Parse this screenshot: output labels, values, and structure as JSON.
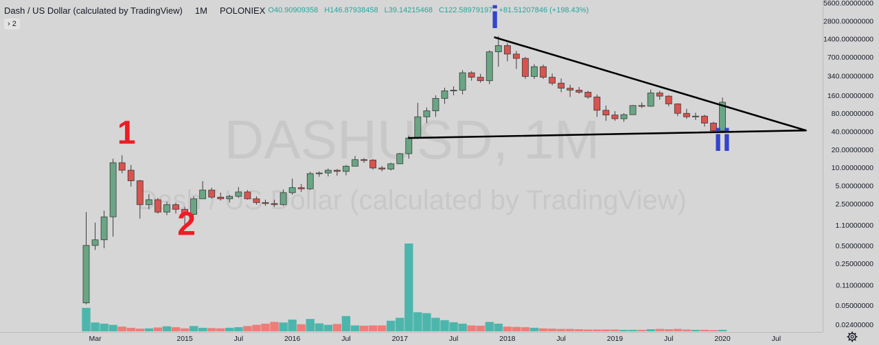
{
  "legend": {
    "symbol_title": "Dash / US Dollar (calculated by TradingView)",
    "interval": "1M",
    "exchange": "POLONIEX",
    "open": "O40.90909358",
    "high": "H146.87938458",
    "low": "L39.14215468",
    "close": "C122.58979197",
    "change": "+81.51207846 (+198.43%)",
    "collapsed_count": "2"
  },
  "colors": {
    "background": "#d6d6d6",
    "up": "#6aa584",
    "down": "#d9534f",
    "volume_up": "#4db6ac",
    "volume_down": "#ef7c78",
    "trendline": "#000000",
    "label_red": "#ee1c24",
    "label_blue": "#3344cc"
  },
  "watermark": {
    "symbol": "DASHUSD, 1M",
    "description": "Dash / US Dollar (calculated by TradingView)"
  },
  "annotations": {
    "label_1": "1",
    "label_2": "2",
    "label_i": "i",
    "label_ii": "ii"
  },
  "chart_data": {
    "type": "candlestick",
    "scale": "log",
    "interval": "1M",
    "ylim": [
      0.018,
      5600
    ],
    "y_ticks": [
      {
        "value": 5600,
        "label": "5600.00000000"
      },
      {
        "value": 2800,
        "label": "2800.00000000"
      },
      {
        "value": 1400,
        "label": "1400.00000000"
      },
      {
        "value": 700,
        "label": "700.00000000"
      },
      {
        "value": 340,
        "label": "340.00000000"
      },
      {
        "value": 160,
        "label": "160.00000000"
      },
      {
        "value": 80,
        "label": "80.00000000"
      },
      {
        "value": 40,
        "label": "40.00000000"
      },
      {
        "value": 20,
        "label": "20.00000000"
      },
      {
        "value": 10,
        "label": "10.00000000"
      },
      {
        "value": 5,
        "label": "5.00000000"
      },
      {
        "value": 2.5,
        "label": "2.50000000"
      },
      {
        "value": 1.1,
        "label": "1.10000000"
      },
      {
        "value": 0.5,
        "label": "0.50000000"
      },
      {
        "value": 0.25,
        "label": "0.25000000"
      },
      {
        "value": 0.11,
        "label": "0.11000000"
      },
      {
        "value": 0.05,
        "label": "0.05000000"
      },
      {
        "value": 0.024,
        "label": "0.02400000"
      }
    ],
    "x_ticks": [
      {
        "index": 1,
        "label": "Mar"
      },
      {
        "index": 11,
        "label": "2015"
      },
      {
        "index": 17,
        "label": "Jul"
      },
      {
        "index": 23,
        "label": "2016"
      },
      {
        "index": 29,
        "label": "Jul"
      },
      {
        "index": 35,
        "label": "2017"
      },
      {
        "index": 41,
        "label": "Jul"
      },
      {
        "index": 47,
        "label": "2018"
      },
      {
        "index": 53,
        "label": "Jul"
      },
      {
        "index": 59,
        "label": "2019"
      },
      {
        "index": 65,
        "label": "Jul"
      },
      {
        "index": 71,
        "label": "2020"
      },
      {
        "index": 77,
        "label": "Jul"
      }
    ],
    "candles": [
      {
        "o": 0.055,
        "h": 1.8,
        "l": 0.052,
        "c": 0.5
      },
      {
        "o": 0.5,
        "h": 1.2,
        "l": 0.42,
        "c": 0.62
      },
      {
        "o": 0.62,
        "h": 1.9,
        "l": 0.45,
        "c": 1.5
      },
      {
        "o": 1.5,
        "h": 14,
        "l": 0.7,
        "c": 12
      },
      {
        "o": 12,
        "h": 16,
        "l": 8,
        "c": 9
      },
      {
        "o": 9,
        "h": 11,
        "l": 4.8,
        "c": 6
      },
      {
        "o": 6,
        "h": 6.2,
        "l": 1.4,
        "c": 2.4
      },
      {
        "o": 2.4,
        "h": 3.6,
        "l": 2.0,
        "c": 2.9
      },
      {
        "o": 2.9,
        "h": 3.1,
        "l": 1.7,
        "c": 1.8
      },
      {
        "o": 1.8,
        "h": 2.7,
        "l": 1.6,
        "c": 2.4
      },
      {
        "o": 2.4,
        "h": 2.6,
        "l": 1.7,
        "c": 2.0
      },
      {
        "o": 2.0,
        "h": 2.2,
        "l": 1.1,
        "c": 1.65
      },
      {
        "o": 1.65,
        "h": 3.3,
        "l": 1.6,
        "c": 3.0
      },
      {
        "o": 3.0,
        "h": 5.9,
        "l": 3.0,
        "c": 4.2
      },
      {
        "o": 4.2,
        "h": 4.6,
        "l": 3.0,
        "c": 3.2
      },
      {
        "o": 3.2,
        "h": 3.8,
        "l": 2.8,
        "c": 3.0
      },
      {
        "o": 3.0,
        "h": 3.5,
        "l": 2.6,
        "c": 3.3
      },
      {
        "o": 3.3,
        "h": 4.7,
        "l": 3.1,
        "c": 3.9
      },
      {
        "o": 3.9,
        "h": 4.2,
        "l": 2.9,
        "c": 3.0
      },
      {
        "o": 3.0,
        "h": 3.3,
        "l": 2.4,
        "c": 2.6
      },
      {
        "o": 2.6,
        "h": 2.9,
        "l": 2.3,
        "c": 2.5
      },
      {
        "o": 2.5,
        "h": 2.9,
        "l": 2.2,
        "c": 2.4
      },
      {
        "o": 2.4,
        "h": 4.3,
        "l": 2.3,
        "c": 3.8
      },
      {
        "o": 3.8,
        "h": 6.5,
        "l": 3.5,
        "c": 4.6
      },
      {
        "o": 4.6,
        "h": 5.3,
        "l": 3.9,
        "c": 4.4
      },
      {
        "o": 4.4,
        "h": 8.5,
        "l": 4.2,
        "c": 7.9
      },
      {
        "o": 7.9,
        "h": 8.6,
        "l": 7.0,
        "c": 8.1
      },
      {
        "o": 8.1,
        "h": 9.6,
        "l": 7.1,
        "c": 9.0
      },
      {
        "o": 9.0,
        "h": 9.4,
        "l": 7.3,
        "c": 8.6
      },
      {
        "o": 8.6,
        "h": 11,
        "l": 7.4,
        "c": 10.5
      },
      {
        "o": 10.5,
        "h": 15.5,
        "l": 10.5,
        "c": 13.5
      },
      {
        "o": 13.5,
        "h": 14.3,
        "l": 12.0,
        "c": 13.3
      },
      {
        "o": 13.3,
        "h": 13.8,
        "l": 9.2,
        "c": 9.8
      },
      {
        "o": 9.8,
        "h": 10.6,
        "l": 8.6,
        "c": 9.4
      },
      {
        "o": 9.4,
        "h": 12,
        "l": 8.9,
        "c": 11.5
      },
      {
        "o": 11.5,
        "h": 17.5,
        "l": 11.5,
        "c": 17.0
      },
      {
        "o": 17.0,
        "h": 34,
        "l": 14,
        "c": 31
      },
      {
        "o": 31,
        "h": 120,
        "l": 30,
        "c": 70
      },
      {
        "o": 70,
        "h": 100,
        "l": 55,
        "c": 88
      },
      {
        "o": 88,
        "h": 160,
        "l": 70,
        "c": 142
      },
      {
        "o": 142,
        "h": 215,
        "l": 115,
        "c": 190
      },
      {
        "o": 190,
        "h": 225,
        "l": 160,
        "c": 195
      },
      {
        "o": 195,
        "h": 420,
        "l": 165,
        "c": 380
      },
      {
        "o": 380,
        "h": 405,
        "l": 280,
        "c": 320
      },
      {
        "o": 320,
        "h": 365,
        "l": 260,
        "c": 280
      },
      {
        "o": 280,
        "h": 900,
        "l": 245,
        "c": 850
      },
      {
        "o": 850,
        "h": 1550,
        "l": 480,
        "c": 1080
      },
      {
        "o": 1080,
        "h": 1190,
        "l": 590,
        "c": 780
      },
      {
        "o": 780,
        "h": 880,
        "l": 440,
        "c": 660
      },
      {
        "o": 660,
        "h": 700,
        "l": 300,
        "c": 330
      },
      {
        "o": 330,
        "h": 530,
        "l": 300,
        "c": 480
      },
      {
        "o": 480,
        "h": 520,
        "l": 300,
        "c": 320
      },
      {
        "o": 320,
        "h": 370,
        "l": 235,
        "c": 255
      },
      {
        "o": 255,
        "h": 305,
        "l": 180,
        "c": 210
      },
      {
        "o": 210,
        "h": 240,
        "l": 150,
        "c": 195
      },
      {
        "o": 195,
        "h": 220,
        "l": 170,
        "c": 180
      },
      {
        "o": 180,
        "h": 190,
        "l": 140,
        "c": 150
      },
      {
        "o": 150,
        "h": 165,
        "l": 70,
        "c": 90
      },
      {
        "o": 90,
        "h": 108,
        "l": 60,
        "c": 75
      },
      {
        "o": 75,
        "h": 87,
        "l": 60,
        "c": 65
      },
      {
        "o": 65,
        "h": 80,
        "l": 58,
        "c": 76
      },
      {
        "o": 76,
        "h": 110,
        "l": 75,
        "c": 108
      },
      {
        "o": 108,
        "h": 122,
        "l": 98,
        "c": 105
      },
      {
        "o": 105,
        "h": 200,
        "l": 103,
        "c": 175
      },
      {
        "o": 175,
        "h": 190,
        "l": 135,
        "c": 155
      },
      {
        "o": 155,
        "h": 160,
        "l": 105,
        "c": 115
      },
      {
        "o": 115,
        "h": 118,
        "l": 72,
        "c": 80
      },
      {
        "o": 80,
        "h": 95,
        "l": 65,
        "c": 70
      },
      {
        "o": 70,
        "h": 82,
        "l": 62,
        "c": 72
      },
      {
        "o": 72,
        "h": 76,
        "l": 48,
        "c": 55
      },
      {
        "o": 55,
        "h": 58,
        "l": 39,
        "c": 41
      },
      {
        "o": 40.9,
        "h": 146.9,
        "l": 39.1,
        "c": 122.6
      }
    ],
    "volume": [
      8,
      3,
      2.6,
      2.2,
      1.6,
      1.2,
      0.9,
      1.0,
      1.3,
      1.7,
      1.4,
      1.0,
      1.8,
      1.2,
      1.1,
      1.0,
      1.2,
      1.4,
      1.8,
      2.2,
      2.6,
      3.2,
      3.0,
      4.0,
      2.4,
      4.2,
      2.7,
      2.2,
      2.5,
      5.2,
      2.0,
      1.9,
      2.0,
      2.0,
      3.6,
      4.6,
      30,
      6.5,
      6.2,
      4.6,
      3.8,
      3.1,
      2.6,
      2.0,
      1.9,
      3.2,
      2.6,
      1.6,
      1.5,
      1.4,
      1.2,
      1.0,
      0.9,
      0.8,
      0.8,
      0.7,
      0.6,
      0.6,
      0.6,
      0.6,
      0.5,
      0.5,
      0.5,
      0.7,
      0.8,
      0.7,
      0.8,
      0.6,
      0.5,
      0.5,
      0.4,
      0.5
    ],
    "volume_unit": "relative",
    "trendlines": [
      {
        "from": {
          "index": 45.6,
          "value": 1480
        },
        "to": {
          "index": 80.3,
          "value": 41.5
        }
      },
      {
        "from": {
          "index": 36.0,
          "value": 31
        },
        "to": {
          "index": 80.3,
          "value": 41.5
        }
      }
    ],
    "labels": [
      {
        "key": "label_1",
        "index": 4.5,
        "value": 25
      },
      {
        "key": "label_2",
        "index": 11.2,
        "value": 0.75
      },
      {
        "key": "label_i",
        "index": 45.6,
        "value": 2100
      },
      {
        "key": "label_ii",
        "index": 71.0,
        "value": 19
      }
    ]
  }
}
